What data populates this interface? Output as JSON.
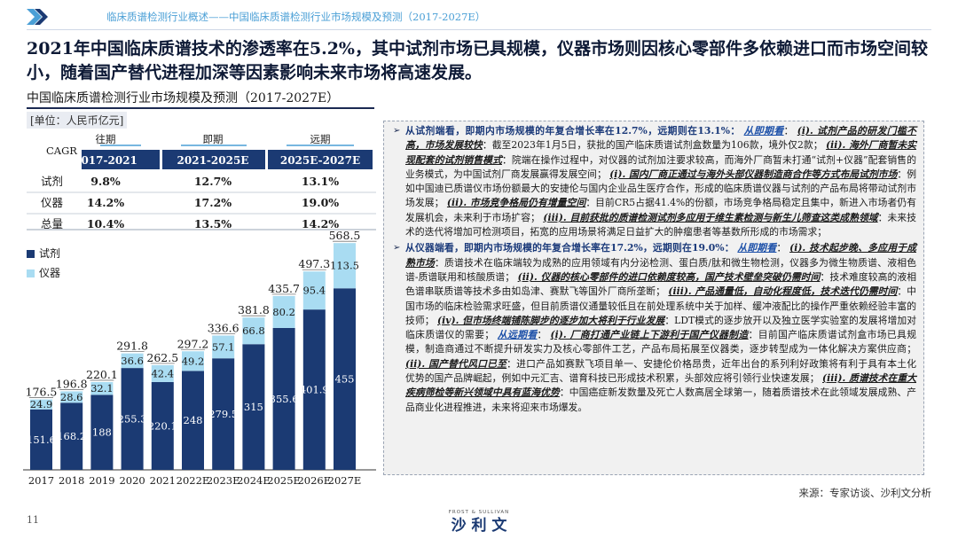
{
  "header": {
    "breadcrumb": "临床质谱检测行业概述——中国临床质谱检测行业市场规模及预测（2017-2027E）"
  },
  "headline": "2021年中国临床质谱技术的渗透率在5.2%，其中试剂市场已具规模，仪器市场则因核心零部件多依赖进口而市场空间较小，随着国产替代进程加深等因素影响未来市场将高速发展。",
  "chart_title": "中国临床质谱检测行业市场规模及预测（2017-2027E）",
  "unit_label": "[单位：人民币亿元]",
  "cagr_table": {
    "corner": "CAGR",
    "periods": [
      "往期",
      "即期",
      "远期"
    ],
    "ranges": [
      "2017-2021",
      "2021-2025E",
      "2025E-2027E"
    ],
    "rows": [
      {
        "label": "试剂",
        "values": [
          "9.8%",
          "12.7%",
          "13.1%"
        ]
      },
      {
        "label": "仪器",
        "values": [
          "14.2%",
          "17.2%",
          "19.0%"
        ]
      },
      {
        "label": "总量",
        "values": [
          "10.4%",
          "13.5%",
          "14.2%"
        ]
      }
    ]
  },
  "colors": {
    "reagent": "#1b3a73",
    "instrument": "#a9dcf2",
    "accent": "#4a9fd6",
    "navy": "#1b2a52"
  },
  "chart_data": {
    "type": "bar",
    "stacked": true,
    "categories": [
      "2017",
      "2018",
      "2019",
      "2020",
      "2021",
      "2022E",
      "2023E",
      "2024E",
      "2025E",
      "2026E",
      "2027E"
    ],
    "series": [
      {
        "name": "试剂",
        "values": [
          151.6,
          168.2,
          188.0,
          255.3,
          220.1,
          248.0,
          279.5,
          315.0,
          355.6,
          401.9,
          455.0
        ]
      },
      {
        "name": "仪器",
        "values": [
          24.9,
          28.6,
          32.1,
          36.6,
          42.4,
          49.2,
          57.1,
          66.8,
          80.2,
          95.4,
          113.5
        ]
      }
    ],
    "totals": [
      176.5,
      196.8,
      220.1,
      291.8,
      262.5,
      297.2,
      336.6,
      381.8,
      435.7,
      497.3,
      568.5
    ],
    "legend_placement": "left",
    "ylim": [
      0,
      600
    ],
    "grid": false
  },
  "panel": {
    "reagent": {
      "intro": "从试剂端看，即期内市场规模的年复合增长率在12.7%，远期则在13.1%：",
      "s1_link": "从即期看",
      "s1_sep": "：",
      "s1_h": "(i). 试剂产品的研发门槛不高，市场发展较快",
      "s1_t": "：截至2023年1月5日，获批的国产临床质谱试剂盒数量为106款，境外仅2款；",
      "s2_h": "(ii). 海外厂商暂未实现配套的试剂销售模式",
      "s2_t": "：院端在操作过程中，对仪器的试剂加注要求较高，而海外厂商暂未打通“试剂+仪器”配套销售的业务模式，为中国试剂厂商发展赢得发展空间；",
      "s3_h": "(i). 国内厂商正通过与海外头部仪器制造商合作等方式布局试剂市场",
      "s3_t": "：例如中国迪已质谱仪市场份额最大的安捷伦与国内企业品生医疗合作，形成的临床质谱仪器与试剂的产品布局将带动试剂市场发展；",
      "s4_h": "(ii). 市场竞争格局仍有增量空间",
      "s4_t": "：目前CR5占据41.4%的份额，市场竞争格局稳定且集中，新进入市场者仍有发展机会，未来利于市场扩容；",
      "s5_h": "(iii). 目前获批的质谱检测试剂多应用于维生素检测与新生儿筛查这类成熟领域",
      "s5_t": "：未来技术的迭代将增加可检测项目，拓宽的应用场景将满足日益扩大的肿瘤患者等基数所形成的市场需求；"
    },
    "instrument": {
      "intro": "从仪器端看，即期内市场规模的年复合增长率在17.2%，远期则在19.0%：",
      "s1_link": "从即期看",
      "s1_sep": "：",
      "s1_h": "(i). 技术起步晚、多应用于成熟市场",
      "s1_t": "：质谱技术在临床端较为成熟的应用领域有内分泌检测、蛋白质/肽和微生物检测，仪器多为微生物质谱、液相色谱-质谱联用和核酸质谱；",
      "s2_h": "(ii). 仪器的核心零部件的进口依赖度较高，国产技术壁垒突破仍需时间",
      "s2_t": "：技术难度较高的液相色谱串联质谱等技术多由如岛津、赛默飞等国外厂商所垄断；",
      "s3_h": "(iii). 产品通量低，自动化程度低，技术迭代仍需时间",
      "s3_t": "：中国市场的临床检验需求旺盛，但目前质谱仪通量较低且在前处理系统中关于加样、缓冲液配比的操作严重依赖经验丰富的技师；",
      "s4_h": "(iv). 但市场终端铺陈脚步的逐步加大将利于行业发展",
      "s4_t": "：LDT模式的逐步放开以及独立医学实验室的发展将增加对临床质谱仪的需要；",
      "s5_link": "从远期看",
      "s5_sep": "：",
      "s5_h": "(i). 厂商打通产业链上下游利于国产仪器制造",
      "s5_t": "：目前国产临床质谱试剂盒市场已具规模，制造商通过不断提升研发实力及核心零部件工艺，产品布局拓展至仪器类，逐步转型成为一体化解决方案供应商；",
      "s6_h": "(ii). 国产替代风口已至",
      "s6_t": "：进口产品如赛默飞项目单一、安捷伦价格昂贵，近年出台的系列利好政策将有利于具有本土化优势的国产品牌崛起，例如中元汇吉、谱育科技已形成技术积累，头部效应将引领行业快速发展；",
      "s7_h": "(iii). 质谱技术在重大疾病筛检等新兴领域中具有蓝海优势",
      "s7_t": "：中国癌症新发数量及死亡人数高居全球第一，随着质谱技术在此领域发展成熟、产品商业化进程推进，未来将迎来市场爆发。"
    }
  },
  "source": "来源：专家访谈、沙利文分析",
  "page_number": "11",
  "logo": {
    "top": "FROST & SULLIVAN",
    "main": "沙 利 文"
  }
}
